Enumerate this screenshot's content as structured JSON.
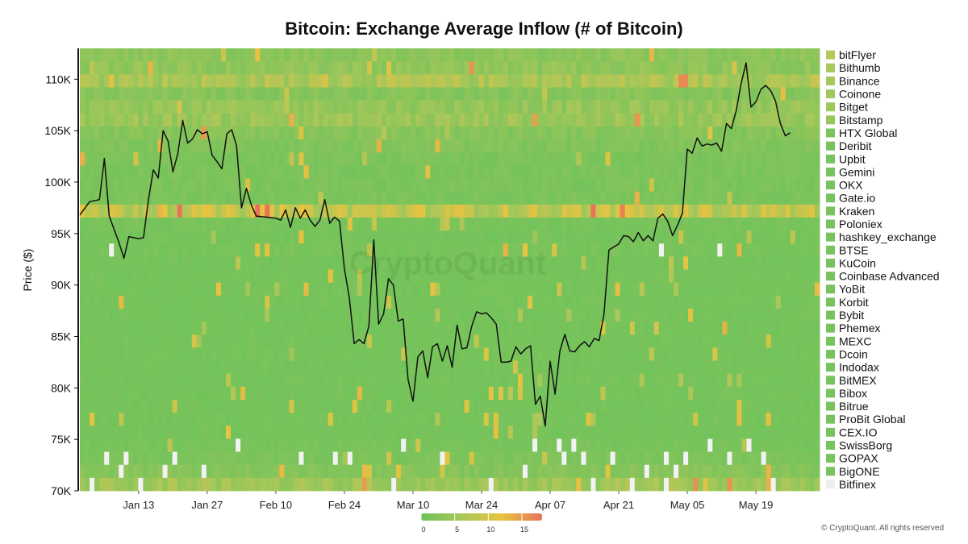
{
  "chart_data": {
    "type": "heatmap",
    "title": "Bitcoin: Exchange Average Inflow (# of Bitcoin)",
    "ylabel": "Price ($)",
    "y_ticks": [
      "110K",
      "105K",
      "100K",
      "95K",
      "90K",
      "85K",
      "80K",
      "75K",
      "70K"
    ],
    "y_tick_values": [
      110000,
      105000,
      100000,
      95000,
      90000,
      85000,
      80000,
      75000,
      70000
    ],
    "ylim": [
      70000,
      113000
    ],
    "x_ticks": [
      "Jan 13",
      "Jan 27",
      "Feb 10",
      "Feb 24",
      "Mar 10",
      "Mar 24",
      "Apr 07",
      "Apr 21",
      "May 05",
      "May 19"
    ],
    "x_tick_days": [
      12,
      26,
      40,
      54,
      68,
      82,
      96,
      110,
      124,
      138
    ],
    "x_range_days": [
      0,
      151
    ],
    "exchanges": [
      "bitFlyer",
      "Bithumb",
      "Binance",
      "Coinone",
      "Bitget",
      "Bitstamp",
      "HTX Global",
      "Deribit",
      "Upbit",
      "Gemini",
      "OKX",
      "Gate.io",
      "Kraken",
      "Poloniex",
      "hashkey_exchange",
      "BTSE",
      "KuCoin",
      "Coinbase Advanced",
      "YoBit",
      "Korbit",
      "Bybit",
      "Phemex",
      "MEXC",
      "Dcoin",
      "Indodax",
      "BitMEX",
      "Bibox",
      "Bitrue",
      "ProBit Global",
      "CEX.IO",
      "SwissBorg",
      "GOPAX",
      "BigONE",
      "Bitfinex"
    ],
    "legend_colors": [
      "#b5c95a",
      "#a9c95b",
      "#a5c95d",
      "#9fc95c",
      "#9cc85c",
      "#95c75c",
      "#7dc45d",
      "#79c35e",
      "#78c35e",
      "#78c35e",
      "#78c35e",
      "#78c35e",
      "#78c35e",
      "#78c35e",
      "#78c35e",
      "#78c35e",
      "#78c35e",
      "#78c35e",
      "#78c35e",
      "#78c35e",
      "#78c35e",
      "#78c35e",
      "#78c35e",
      "#78c35e",
      "#78c35e",
      "#78c35e",
      "#78c35e",
      "#78c35e",
      "#78c35e",
      "#78c35e",
      "#78c35e",
      "#78c35e",
      "#78c35e",
      "#eeeeee"
    ],
    "row_base_values": [
      3,
      3.5,
      6,
      2.5,
      4,
      4.5,
      2.5,
      2,
      1.5,
      1.5,
      1.5,
      1.5,
      8,
      1.2,
      1,
      1.2,
      1,
      1,
      1,
      1,
      1,
      1,
      1,
      1,
      1,
      1,
      1,
      1,
      1,
      1,
      1.2,
      1.5,
      2.5,
      5
    ],
    "color_scale": {
      "ticks": [
        0,
        5,
        10,
        15
      ],
      "stops": [
        "#6cc25b",
        "#a8c75a",
        "#e8c340",
        "#e8735a"
      ],
      "range": [
        0,
        18
      ]
    },
    "series": [
      {
        "name": "Price",
        "points": [
          [
            0,
            96800
          ],
          [
            2,
            98100
          ],
          [
            4,
            98300
          ],
          [
            5,
            102300
          ],
          [
            6,
            96700
          ],
          [
            8,
            94100
          ],
          [
            9,
            92600
          ],
          [
            10,
            94700
          ],
          [
            12,
            94500
          ],
          [
            13,
            94600
          ],
          [
            14,
            98300
          ],
          [
            15,
            101200
          ],
          [
            16,
            100400
          ],
          [
            17,
            105000
          ],
          [
            18,
            104000
          ],
          [
            19,
            101000
          ],
          [
            20,
            102800
          ],
          [
            21,
            106000
          ],
          [
            22,
            103800
          ],
          [
            23,
            104200
          ],
          [
            24,
            105100
          ],
          [
            25,
            104700
          ],
          [
            26,
            104900
          ],
          [
            27,
            102600
          ],
          [
            28,
            102000
          ],
          [
            29,
            101300
          ],
          [
            30,
            104700
          ],
          [
            31,
            105100
          ],
          [
            32,
            103500
          ],
          [
            33,
            97500
          ],
          [
            34,
            99400
          ],
          [
            35,
            97800
          ],
          [
            36,
            96700
          ],
          [
            38,
            96600
          ],
          [
            40,
            96500
          ],
          [
            41,
            96300
          ],
          [
            42,
            97300
          ],
          [
            43,
            95600
          ],
          [
            44,
            97500
          ],
          [
            45,
            96500
          ],
          [
            46,
            97300
          ],
          [
            47,
            96300
          ],
          [
            48,
            95700
          ],
          [
            49,
            96300
          ],
          [
            50,
            98300
          ],
          [
            51,
            96000
          ],
          [
            52,
            96600
          ],
          [
            53,
            96200
          ],
          [
            54,
            91600
          ],
          [
            55,
            88800
          ],
          [
            56,
            84300
          ],
          [
            57,
            84700
          ],
          [
            58,
            84300
          ],
          [
            59,
            86000
          ],
          [
            60,
            94400
          ],
          [
            61,
            86200
          ],
          [
            62,
            87200
          ],
          [
            63,
            90600
          ],
          [
            64,
            90000
          ],
          [
            65,
            86500
          ],
          [
            66,
            86700
          ],
          [
            67,
            80800
          ],
          [
            68,
            78700
          ],
          [
            69,
            83000
          ],
          [
            70,
            83600
          ],
          [
            71,
            81000
          ],
          [
            72,
            84000
          ],
          [
            73,
            84300
          ],
          [
            74,
            82600
          ],
          [
            75,
            84100
          ],
          [
            76,
            82000
          ],
          [
            77,
            86100
          ],
          [
            78,
            83800
          ],
          [
            79,
            83900
          ],
          [
            80,
            86000
          ],
          [
            81,
            87400
          ],
          [
            82,
            87200
          ],
          [
            83,
            87300
          ],
          [
            84,
            86800
          ],
          [
            85,
            86200
          ],
          [
            86,
            82500
          ],
          [
            87,
            82500
          ],
          [
            88,
            82600
          ],
          [
            89,
            84000
          ],
          [
            90,
            83300
          ],
          [
            91,
            83800
          ],
          [
            92,
            84100
          ],
          [
            93,
            78400
          ],
          [
            94,
            79200
          ],
          [
            95,
            76300
          ],
          [
            96,
            82600
          ],
          [
            97,
            79400
          ],
          [
            98,
            83600
          ],
          [
            99,
            85200
          ],
          [
            100,
            83600
          ],
          [
            101,
            83500
          ],
          [
            102,
            84100
          ],
          [
            103,
            84500
          ],
          [
            104,
            84000
          ],
          [
            105,
            84800
          ],
          [
            106,
            84600
          ],
          [
            107,
            87200
          ],
          [
            108,
            93400
          ],
          [
            109,
            93700
          ],
          [
            110,
            94000
          ],
          [
            111,
            94800
          ],
          [
            112,
            94700
          ],
          [
            113,
            94200
          ],
          [
            114,
            95100
          ],
          [
            115,
            94300
          ],
          [
            116,
            94800
          ],
          [
            117,
            94300
          ],
          [
            118,
            96500
          ],
          [
            119,
            96900
          ],
          [
            120,
            96200
          ],
          [
            121,
            94800
          ],
          [
            122,
            95800
          ],
          [
            123,
            97000
          ],
          [
            124,
            103200
          ],
          [
            125,
            102800
          ],
          [
            126,
            104300
          ],
          [
            127,
            103500
          ],
          [
            128,
            103700
          ],
          [
            129,
            103600
          ],
          [
            130,
            103800
          ],
          [
            131,
            103000
          ],
          [
            132,
            105700
          ],
          [
            133,
            105200
          ],
          [
            134,
            107000
          ],
          [
            135,
            109600
          ],
          [
            136,
            111600
          ],
          [
            137,
            107300
          ],
          [
            138,
            107800
          ],
          [
            139,
            109000
          ],
          [
            140,
            109400
          ],
          [
            141,
            108900
          ],
          [
            142,
            107900
          ],
          [
            143,
            105700
          ],
          [
            144,
            104500
          ],
          [
            145,
            104800
          ]
        ]
      }
    ]
  },
  "footer": {
    "copyright": "© CryptoQuant. All rights reserved",
    "watermark": "CryptoQuant"
  },
  "colors": {
    "line": "#111111",
    "missing_cell": "#f2f2f2"
  }
}
